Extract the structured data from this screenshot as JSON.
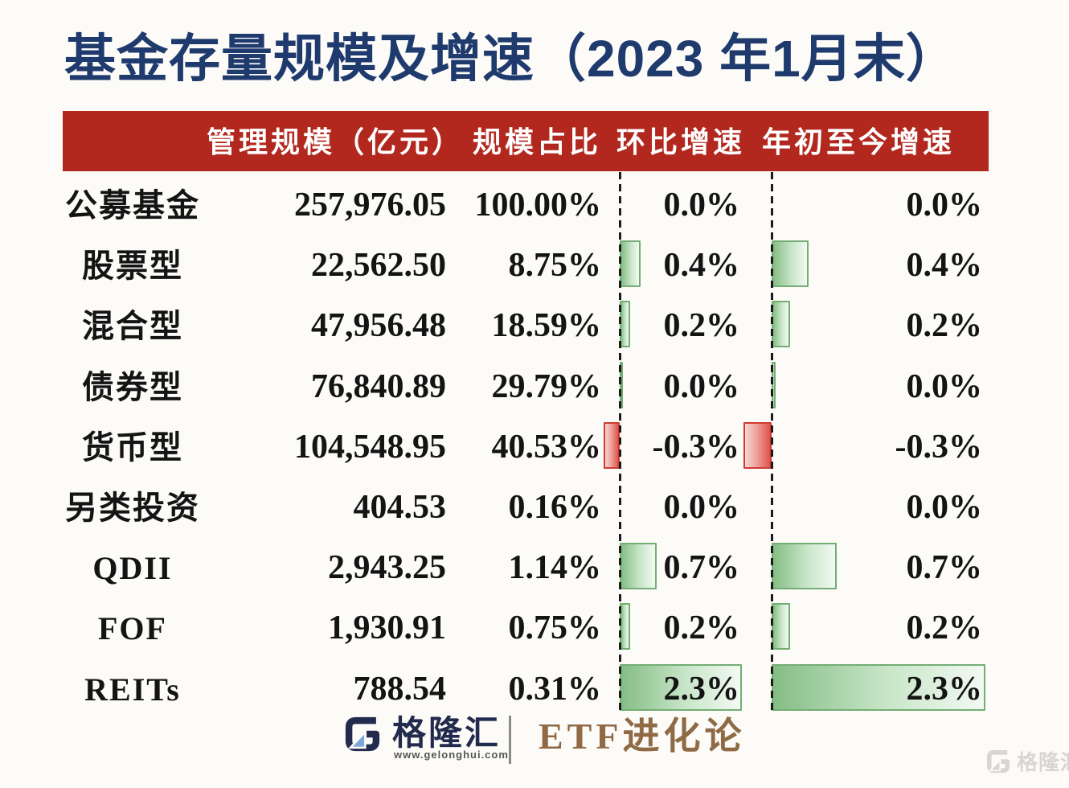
{
  "page": {
    "title": "基金存量规模及增速（2023 年1月末）"
  },
  "table": {
    "headers": {
      "scale": "管理规模（亿元）",
      "share": "规模占比",
      "mom": "环比增速",
      "ytd": "年初至今增速"
    },
    "rows": [
      {
        "label": "公募基金",
        "scale": "257,976.05",
        "share": "100.00%",
        "mom": "0.0%",
        "ytd": "0.0%"
      },
      {
        "label": "股票型",
        "scale": "22,562.50",
        "share": "8.75%",
        "mom": "0.4%",
        "ytd": "0.4%"
      },
      {
        "label": "混合型",
        "scale": "47,956.48",
        "share": "18.59%",
        "mom": "0.2%",
        "ytd": "0.2%"
      },
      {
        "label": "债券型",
        "scale": "76,840.89",
        "share": "29.79%",
        "mom": "0.0%",
        "ytd": "0.0%"
      },
      {
        "label": "货币型",
        "scale": "104,548.95",
        "share": "40.53%",
        "mom": "-0.3%",
        "ytd": "-0.3%"
      },
      {
        "label": "另类投资",
        "scale": "404.53",
        "share": "0.16%",
        "mom": "0.0%",
        "ytd": "0.0%"
      },
      {
        "label": "QDII",
        "scale": "2,943.25",
        "share": "1.14%",
        "mom": "0.7%",
        "ytd": "0.7%"
      },
      {
        "label": "FOF",
        "scale": "1,930.91",
        "share": "0.75%",
        "mom": "0.2%",
        "ytd": "0.2%"
      },
      {
        "label": "REITs",
        "scale": "788.54",
        "share": "0.31%",
        "mom": "2.3%",
        "ytd": "2.3%"
      }
    ]
  },
  "chart_data": {
    "type": "bar",
    "orientation": "horizontal",
    "title": "基金存量规模及增速（2023 年1月末）",
    "categories": [
      "公募基金",
      "股票型",
      "混合型",
      "债券型",
      "货币型",
      "另类投资",
      "QDII",
      "FOF",
      "REITs"
    ],
    "series": [
      {
        "name": "管理规模（亿元）",
        "values": [
          257976.05,
          22562.5,
          47956.48,
          76840.89,
          104548.95,
          404.53,
          2943.25,
          1930.91,
          788.54
        ]
      },
      {
        "name": "规模占比(%)",
        "values": [
          100.0,
          8.75,
          18.59,
          29.79,
          40.53,
          0.16,
          1.14,
          0.75,
          0.31
        ]
      },
      {
        "name": "环比增速(%)",
        "values": [
          0.0,
          0.4,
          0.2,
          0.0,
          -0.3,
          0.0,
          0.7,
          0.2,
          2.3
        ],
        "bar_rendered": [
          0,
          0.4,
          0.2,
          0.04,
          -0.3,
          0,
          0.7,
          0.2,
          2.3
        ]
      },
      {
        "name": "年初至今增速(%)",
        "values": [
          0.0,
          0.4,
          0.2,
          0.0,
          -0.3,
          0.0,
          0.7,
          0.2,
          2.3
        ],
        "bar_rendered": [
          0,
          0.4,
          0.2,
          0.04,
          -0.3,
          0,
          0.7,
          0.2,
          2.3
        ]
      }
    ],
    "legend": false,
    "positive_color": "#85bd85",
    "negative_color": "#e0534a"
  },
  "footer": {
    "brand": "格隆汇",
    "brand_url": "www.gelonghui.com",
    "channel": "ETF进化论",
    "watermark": "格隆汇"
  },
  "colors": {
    "page_bg": "#fcfbf8",
    "body_text": "#141414",
    "title_navy": "#1f3a6d",
    "header_red": "#b2281e",
    "header_text": "#ffffff",
    "green_border": "#74ad74",
    "green_dark": "#85bd85",
    "green_light": "#f2f9f2",
    "red_border": "#cf3a31",
    "red_dark": "#e0534a",
    "red_light": "#f7d6d2",
    "axis_black": "#1b1b1b",
    "brand_navy": "#222b4d",
    "brand_blue": "#7aa6d8",
    "divider_gray": "#8a8a8a",
    "channel_gold": "#8f6a45",
    "watermark_gray": "#d7d6d3"
  }
}
